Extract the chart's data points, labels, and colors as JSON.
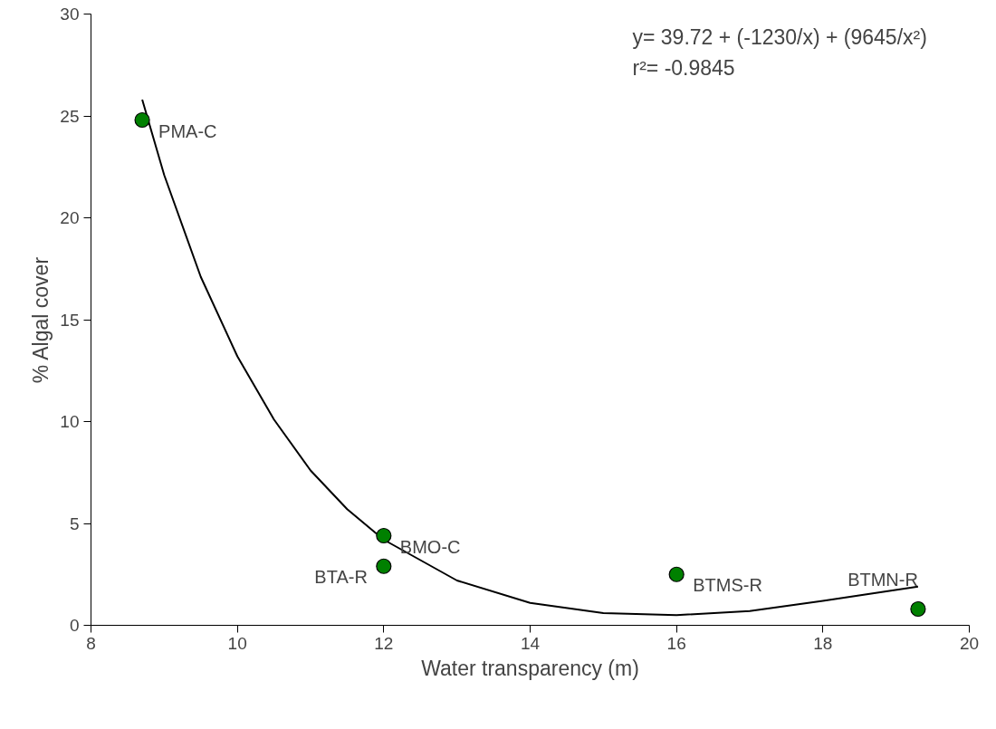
{
  "chart_data": {
    "type": "scatter",
    "xlabel": "Water transparency (m)",
    "ylabel": "% Algal cover",
    "xlim": [
      8,
      20
    ],
    "ylim": [
      0,
      30
    ],
    "xticks": [
      8,
      10,
      12,
      14,
      16,
      18,
      20
    ],
    "yticks": [
      0,
      5,
      10,
      15,
      20,
      25,
      30
    ],
    "grid": false,
    "marker": "circle",
    "series": [
      {
        "color": "#008000",
        "x": [
          8.7,
          12,
          12,
          16,
          19.3
        ],
        "values": [
          24.8,
          4.4,
          2.9,
          2.5,
          0.8
        ]
      },
      {
        "type": "line",
        "color": "#000000",
        "line_style": "solid",
        "marker": "none",
        "x": [
          8.7,
          9,
          9.5,
          10,
          10.5,
          11,
          11.5,
          12,
          13,
          14,
          15,
          16,
          17,
          18,
          19.3
        ],
        "values": [
          25.8,
          22.1,
          17.1,
          13.2,
          10.1,
          7.6,
          5.7,
          4.2,
          2.2,
          1.1,
          0.6,
          0.5,
          0.7,
          1.2,
          1.9
        ]
      }
    ],
    "annotations": [
      {
        "text": "PMA-C",
        "x": 8.7,
        "y": 24.8
      },
      {
        "text": "BMO-C",
        "x": 12,
        "y": 4.4
      },
      {
        "text": "BTA-R",
        "x": 12,
        "y": 2.9
      },
      {
        "text": "BTMS-R",
        "x": 16,
        "y": 2.5
      },
      {
        "text": "BTMN-R",
        "x": 19.3,
        "y": 0.8
      },
      "y= 39.72 + (-1230/x) + (9645/x²)",
      "r²= -0.9845"
    ]
  }
}
